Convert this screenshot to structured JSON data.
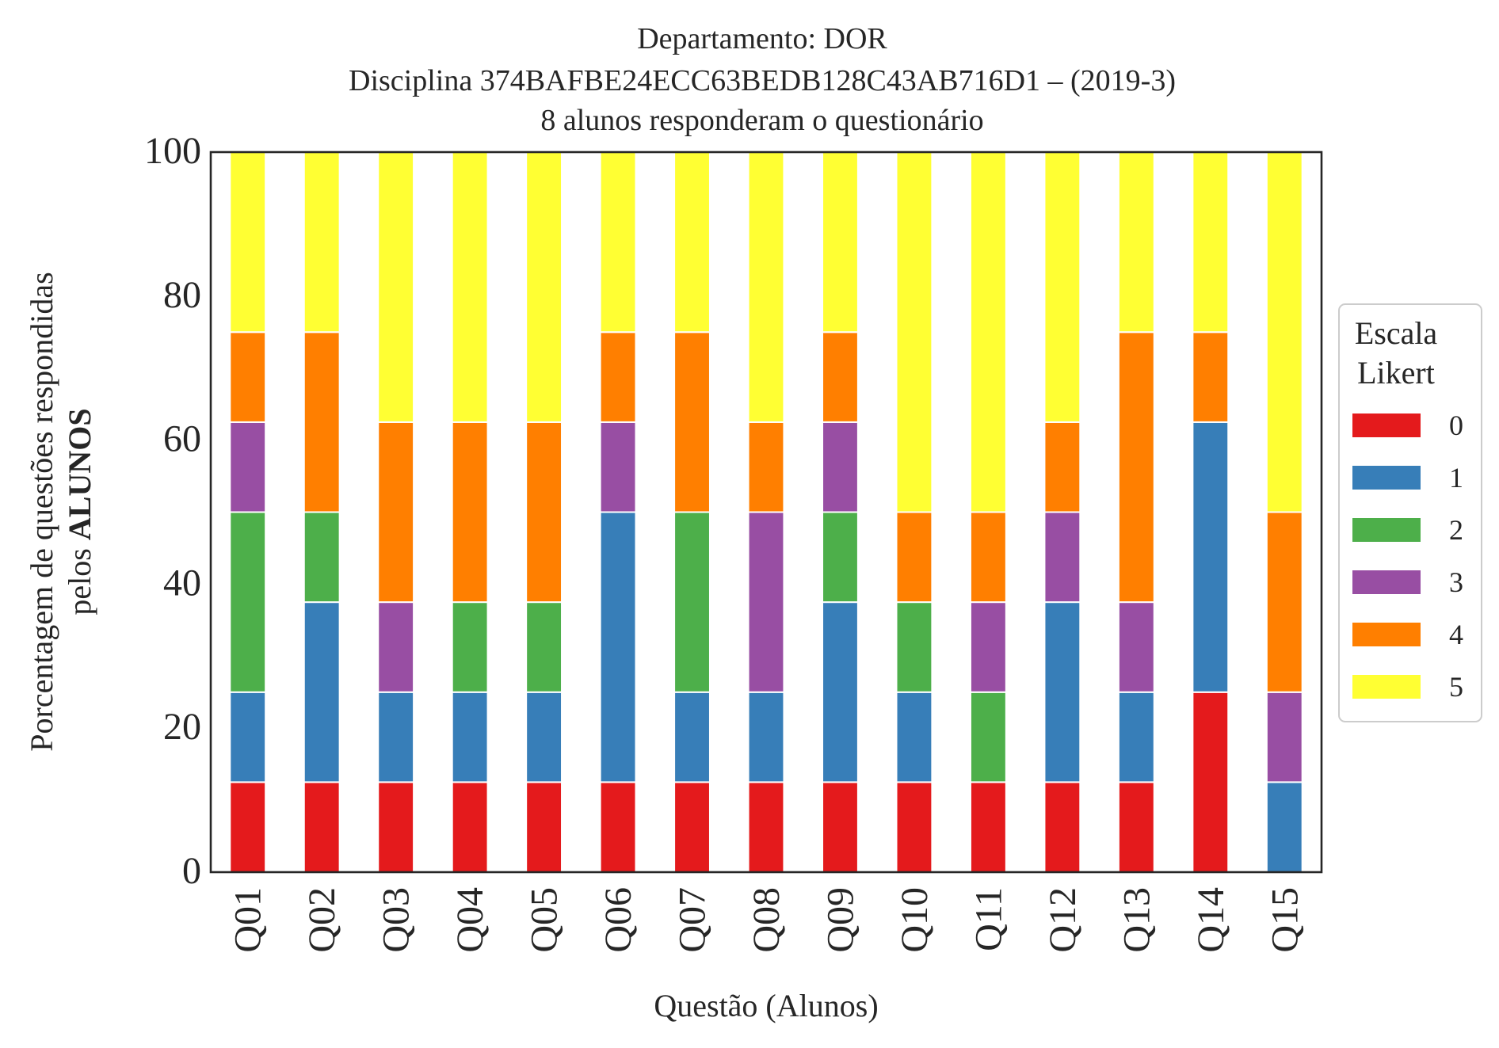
{
  "chart_data": {
    "type": "bar",
    "stacked": true,
    "title_lines": [
      "Departamento: DOR",
      "Disciplina 374BAFBE24ECC63BEDB128C43AB716D1 – (2019-3)",
      "8 alunos responderam o questionário"
    ],
    "xlabel": "Questão (Alunos)",
    "ylabel_line1": "Porcentagem de questões respondidas",
    "ylabel_line2_prefix": "pelos ",
    "ylabel_line2_bold": "ALUNOS",
    "ylim": [
      0,
      100
    ],
    "yticks": [
      "0",
      "20",
      "40",
      "60",
      "80",
      "100"
    ],
    "categories": [
      "Q01",
      "Q02",
      "Q03",
      "Q04",
      "Q05",
      "Q06",
      "Q07",
      "Q08",
      "Q09",
      "Q10",
      "Q11",
      "Q12",
      "Q13",
      "Q14",
      "Q15"
    ],
    "legend": {
      "title_line1": "Escala",
      "title_line2": "Likert",
      "placement": "right"
    },
    "series": [
      {
        "name": "0",
        "color": "#e41a1c",
        "values": [
          12.5,
          12.5,
          12.5,
          12.5,
          12.5,
          12.5,
          12.5,
          12.5,
          12.5,
          12.5,
          12.5,
          12.5,
          12.5,
          25,
          0
        ]
      },
      {
        "name": "1",
        "color": "#377eb8",
        "values": [
          12.5,
          25,
          12.5,
          12.5,
          12.5,
          37.5,
          12.5,
          12.5,
          25,
          12.5,
          0,
          25,
          12.5,
          37.5,
          12.5
        ]
      },
      {
        "name": "2",
        "color": "#4daf4a",
        "values": [
          25,
          12.5,
          0,
          12.5,
          12.5,
          0,
          25,
          0,
          12.5,
          12.5,
          12.5,
          0,
          0,
          0,
          0
        ]
      },
      {
        "name": "3",
        "color": "#984ea3",
        "values": [
          12.5,
          0,
          12.5,
          0,
          0,
          12.5,
          0,
          25,
          12.5,
          0,
          12.5,
          12.5,
          12.5,
          0,
          12.5
        ]
      },
      {
        "name": "4",
        "color": "#ff7f00",
        "values": [
          12.5,
          25,
          25,
          25,
          25,
          12.5,
          25,
          12.5,
          12.5,
          12.5,
          12.5,
          12.5,
          37.5,
          12.5,
          25
        ]
      },
      {
        "name": "5",
        "color": "#ffff33",
        "values": [
          25,
          25,
          37.5,
          37.5,
          37.5,
          25,
          25,
          37.5,
          25,
          50,
          50,
          37.5,
          25,
          25,
          50
        ]
      }
    ]
  }
}
